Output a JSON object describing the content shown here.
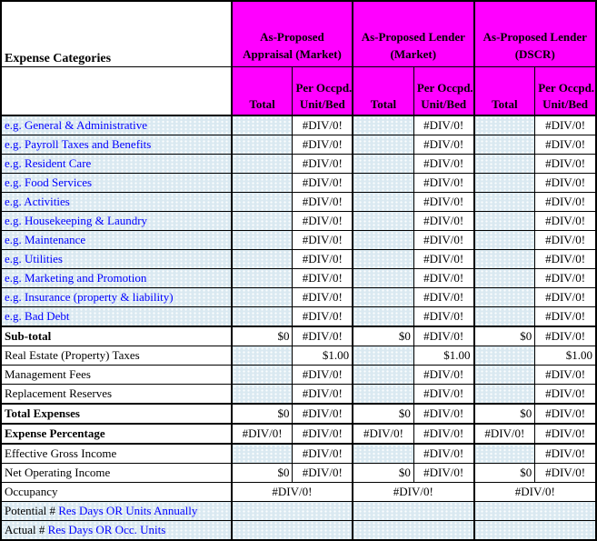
{
  "colors": {
    "header_bg": "#FF00FF",
    "row_shade": "#DAE9F1",
    "category_text": "#0000FF",
    "grid": "#000000"
  },
  "table": {
    "corner_label": "Expense Categories",
    "groups": [
      {
        "title": "As-Proposed Appraisal (Market)",
        "line1": "As-Proposed",
        "line2": "Appraisal (Market)"
      },
      {
        "title": "As-Proposed Lender (Market)",
        "line1": "As-Proposed Lender",
        "line2": "(Market)"
      },
      {
        "title": "As-Proposed Lender (DSCR)",
        "line1": "As-Proposed Lender",
        "line2": "(DSCR)"
      }
    ],
    "sub_total_label": "Total",
    "sub_per_line1": "Per Occpd.",
    "sub_per_line2": "Unit/Bed",
    "error_value": "#DIV/0!",
    "rows": [
      {
        "label": "e.g. General & Administrative",
        "lc": "blue",
        "lbg": "blue",
        "total": {
          "t": "",
          "bg": "blue"
        },
        "per": {
          "t": "#DIV/0!",
          "bg": "white",
          "al": "c"
        }
      },
      {
        "label": "e.g. Payroll Taxes and Benefits",
        "lc": "blue",
        "lbg": "blue",
        "total": {
          "t": "",
          "bg": "blue"
        },
        "per": {
          "t": "#DIV/0!",
          "bg": "white",
          "al": "c"
        }
      },
      {
        "label": "e.g. Resident Care",
        "lc": "blue",
        "lbg": "blue",
        "total": {
          "t": "",
          "bg": "blue"
        },
        "per": {
          "t": "#DIV/0!",
          "bg": "white",
          "al": "c"
        }
      },
      {
        "label": "e.g. Food Services",
        "lc": "blue",
        "lbg": "blue",
        "total": {
          "t": "",
          "bg": "blue"
        },
        "per": {
          "t": "#DIV/0!",
          "bg": "white",
          "al": "c"
        }
      },
      {
        "label": "e.g. Activities",
        "lc": "blue",
        "lbg": "blue",
        "total": {
          "t": "",
          "bg": "blue"
        },
        "per": {
          "t": "#DIV/0!",
          "bg": "white",
          "al": "c"
        }
      },
      {
        "label": "e.g. Housekeeping  & Laundry",
        "lc": "blue",
        "lbg": "blue",
        "total": {
          "t": "",
          "bg": "blue"
        },
        "per": {
          "t": "#DIV/0!",
          "bg": "white",
          "al": "c"
        }
      },
      {
        "label": "e.g. Maintenance",
        "lc": "blue",
        "lbg": "blue",
        "total": {
          "t": "",
          "bg": "blue"
        },
        "per": {
          "t": "#DIV/0!",
          "bg": "white",
          "al": "c"
        }
      },
      {
        "label": "e.g. Utilities",
        "lc": "blue",
        "lbg": "blue",
        "total": {
          "t": "",
          "bg": "blue"
        },
        "per": {
          "t": "#DIV/0!",
          "bg": "white",
          "al": "c"
        }
      },
      {
        "label": "e.g. Marketing and Promotion",
        "lc": "blue",
        "lbg": "blue",
        "total": {
          "t": "",
          "bg": "blue"
        },
        "per": {
          "t": "#DIV/0!",
          "bg": "white",
          "al": "c"
        }
      },
      {
        "label": "e.g. Insurance (property & liability)",
        "lc": "blue",
        "lbg": "blue",
        "total": {
          "t": "",
          "bg": "blue"
        },
        "per": {
          "t": "#DIV/0!",
          "bg": "white",
          "al": "c"
        }
      },
      {
        "label": "e.g. Bad Debt",
        "lc": "blue",
        "lbg": "blue",
        "total": {
          "t": "",
          "bg": "blue"
        },
        "per": {
          "t": "#DIV/0!",
          "bg": "white",
          "al": "c"
        }
      },
      {
        "label": "Sub-total",
        "lc": "bold",
        "lbg": "white",
        "top": "thick",
        "total": {
          "t": "$0",
          "bg": "white",
          "al": "r"
        },
        "per": {
          "t": "#DIV/0!",
          "bg": "white",
          "al": "c"
        }
      },
      {
        "label": "Real Estate (Property) Taxes",
        "lc": "plain",
        "lbg": "white",
        "total": {
          "t": "",
          "bg": "blue"
        },
        "per": {
          "t": "$1.00",
          "bg": "white",
          "al": "r"
        }
      },
      {
        "label": "Management Fees",
        "lc": "plain",
        "lbg": "white",
        "total": {
          "t": "",
          "bg": "blue"
        },
        "per": {
          "t": "#DIV/0!",
          "bg": "white",
          "al": "c"
        }
      },
      {
        "label": "Replacement Reserves",
        "lc": "plain",
        "lbg": "white",
        "total": {
          "t": "",
          "bg": "blue"
        },
        "per": {
          "t": "#DIV/0!",
          "bg": "white",
          "al": "c"
        }
      },
      {
        "label": "Total Expenses",
        "lc": "bold",
        "lbg": "white",
        "top": "thick",
        "total": {
          "t": "$0",
          "bg": "white",
          "al": "r"
        },
        "per": {
          "t": "#DIV/0!",
          "bg": "white",
          "al": "c"
        }
      },
      {
        "label": "Expense Percentage",
        "lc": "bold",
        "lbg": "white",
        "top": "thick",
        "total": {
          "t": "#DIV/0!",
          "bg": "white",
          "al": "c"
        },
        "per": {
          "t": "#DIV/0!",
          "bg": "white",
          "al": "c"
        }
      },
      {
        "label": "Effective Gross Income",
        "lc": "plain",
        "lbg": "white",
        "top": "thick",
        "total": {
          "t": "",
          "bg": "blue"
        },
        "per": {
          "t": "#DIV/0!",
          "bg": "white",
          "al": "c"
        }
      },
      {
        "label": "Net Operating Income",
        "lc": "plain",
        "lbg": "white",
        "total": {
          "t": "$0",
          "bg": "white",
          "al": "r"
        },
        "per": {
          "t": "#DIV/0!",
          "bg": "white",
          "al": "c"
        }
      },
      {
        "label": "Occupancy",
        "lc": "plain",
        "lbg": "white",
        "merged": {
          "t": "#DIV/0!",
          "bg": "white",
          "al": "c"
        }
      },
      {
        "label_parts": [
          {
            "t": "Potential # ",
            "c": "#000000"
          },
          {
            "t": "Res Days OR Units Annually",
            "c": "#0000FF"
          }
        ],
        "lbg": "blue",
        "merged": {
          "t": "",
          "bg": "blue",
          "al": "c"
        }
      },
      {
        "label_parts": [
          {
            "t": "Actual # ",
            "c": "#000000"
          },
          {
            "t": "Res Days OR Occ. Units",
            "c": "#0000FF"
          }
        ],
        "lbg": "blue",
        "merged": {
          "t": "",
          "bg": "blue",
          "al": "c"
        }
      }
    ]
  }
}
